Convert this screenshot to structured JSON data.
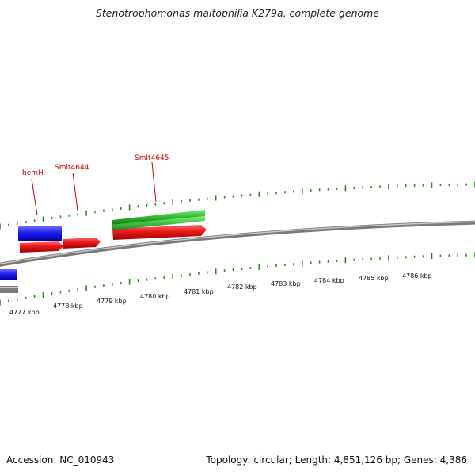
{
  "title": "Stenotrophomonas maltophilia K279a, complete genome",
  "footer": {
    "accession": "Accession: NC_010943",
    "summary": "Topology: circular; Length: 4,851,126 bp; Genes: 4,386"
  },
  "scale": {
    "unit": "kbp",
    "labels": [
      "4777 kbp",
      "4778 kbp",
      "4779 kbp",
      "4780 kbp",
      "4781 kbp",
      "4782 kbp",
      "4783 kbp",
      "4784 kbp",
      "4785 kbp",
      "4786 kbp"
    ]
  },
  "gene_labels": [
    "hemH",
    "Smlt4644",
    "Smlt4645"
  ],
  "colors": {
    "forward_cds": "#e81818",
    "reverse_cds": "#1a1aee",
    "rna_feature": "#2fbf2f",
    "backbone": "#8a8a8a",
    "ticks": "#2a8a1a",
    "gene_label": "#cc0000"
  }
}
